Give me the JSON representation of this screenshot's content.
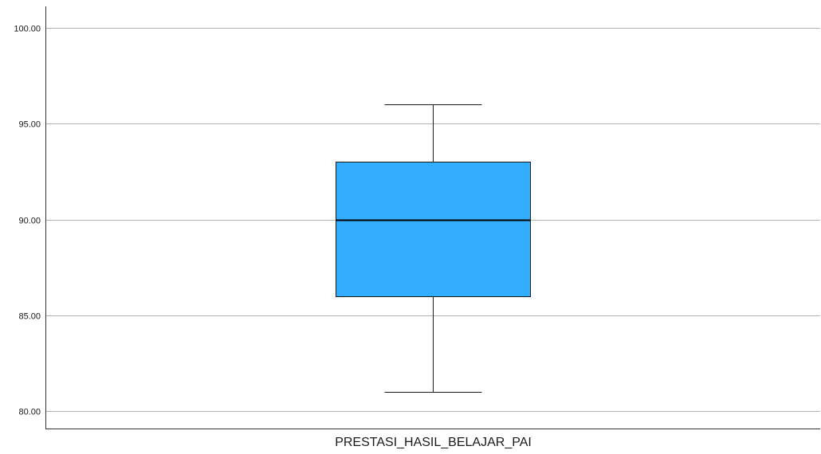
{
  "chart_data": {
    "type": "boxplot",
    "categories": [
      "PRESTASI_HASIL_BELAJAR_PAI"
    ],
    "boxes": [
      {
        "category": "PRESTASI_HASIL_BELAJAR_PAI",
        "min": 81,
        "q1": 86,
        "median": 90,
        "q3": 93,
        "max": 96
      }
    ],
    "ylim": [
      78.8,
      101.1
    ],
    "yticks": [
      80,
      85,
      90,
      95,
      100
    ],
    "ytick_labels": [
      "80.00",
      "85.00",
      "90.00",
      "95.00",
      "100.00"
    ],
    "grid": true,
    "colors": {
      "box_fill": "#33adff",
      "box_stroke": "#1a1a1a",
      "gridline": "#b3b3b3",
      "axis": "#333333"
    },
    "title": "",
    "xlabel": "",
    "ylabel": ""
  }
}
